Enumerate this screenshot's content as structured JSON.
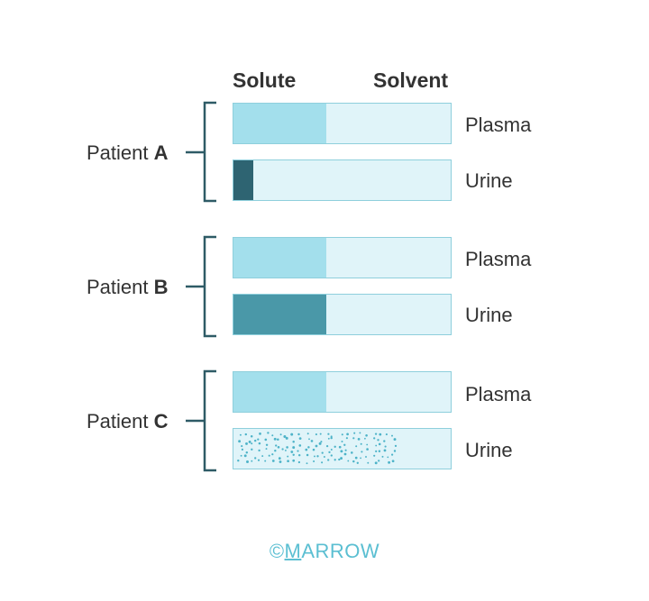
{
  "header": {
    "solute_label": "Solute",
    "solvent_label": "Solvent"
  },
  "patients": [
    {
      "prefix": "Patient",
      "letter": "A",
      "rows": [
        {
          "label": "Plasma",
          "solute_fraction": 0.43,
          "fill_color": "#a3dfec",
          "pattern": "solid"
        },
        {
          "label": "Urine",
          "solute_fraction": 0.09,
          "fill_color": "#2e6472",
          "pattern": "solid"
        }
      ]
    },
    {
      "prefix": "Patient",
      "letter": "B",
      "rows": [
        {
          "label": "Plasma",
          "solute_fraction": 0.43,
          "fill_color": "#a3dfec",
          "pattern": "solid"
        },
        {
          "label": "Urine",
          "solute_fraction": 0.43,
          "fill_color": "#4a98a8",
          "pattern": "solid"
        }
      ]
    },
    {
      "prefix": "Patient",
      "letter": "C",
      "rows": [
        {
          "label": "Plasma",
          "solute_fraction": 0.43,
          "fill_color": "#a3dfec",
          "pattern": "solid"
        },
        {
          "label": "Urine",
          "solute_fraction": 0.77,
          "fill_color": "#e0f4f9",
          "pattern": "dots"
        }
      ]
    }
  ],
  "colors": {
    "solvent": "#e0f4f9",
    "bracket": "#2e5b66",
    "dot": "#4db3c8"
  },
  "logo": {
    "symbol": "©",
    "first": "M",
    "rest": "ARROW"
  }
}
